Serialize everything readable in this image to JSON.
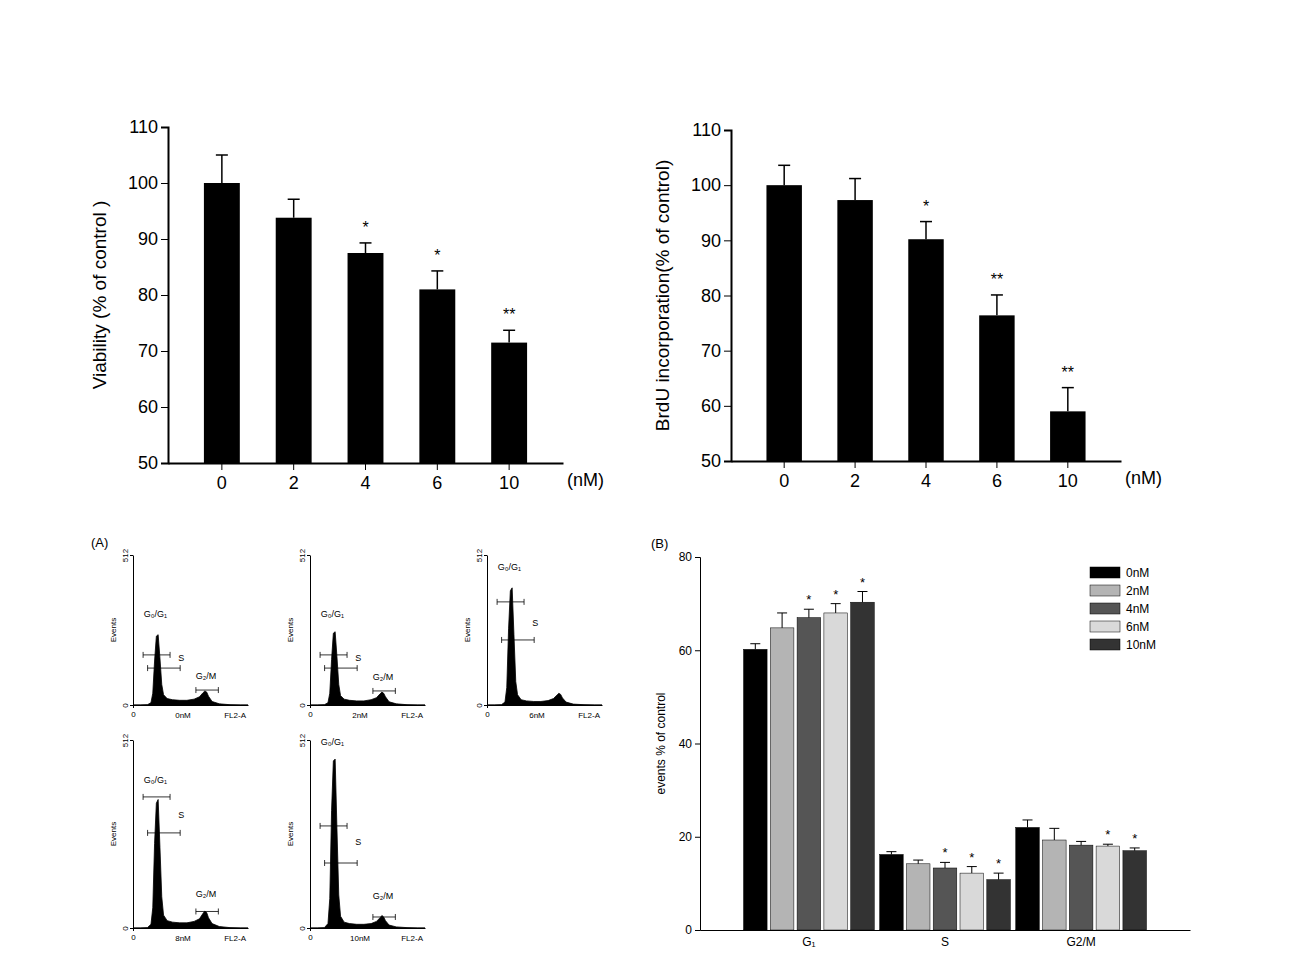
{
  "chart_data": [
    {
      "type": "bar",
      "categories": [
        "0",
        "2",
        "4",
        "6",
        "10"
      ],
      "values": [
        100,
        93.8,
        87.5,
        81,
        71.5
      ],
      "errors": [
        5,
        3.3,
        1.8,
        3.3,
        2.2
      ],
      "significance": [
        null,
        null,
        "*",
        "*",
        "**"
      ],
      "xlabel": "(nM)",
      "ylabel": "Viability (% of control )",
      "ylim": [
        50,
        110
      ],
      "yticks": [
        50,
        60,
        70,
        80,
        90,
        100,
        110
      ],
      "color": "#000000"
    },
    {
      "type": "bar",
      "categories": [
        "0",
        "2",
        "4",
        "6",
        "10"
      ],
      "values": [
        100,
        97.3,
        90.2,
        76.4,
        59
      ],
      "errors": [
        3.6,
        3.9,
        3.2,
        3.7,
        4.3
      ],
      "significance": [
        null,
        null,
        "*",
        "**",
        "**"
      ],
      "xlabel": "(nM)",
      "ylabel": "BrdU incorporation(% of control)",
      "ylim": [
        50,
        110
      ],
      "yticks": [
        50,
        60,
        70,
        80,
        90,
        100,
        110
      ],
      "color": "#000000"
    },
    {
      "type": "area",
      "panel_label": "(A)",
      "label": "0nM",
      "xlabel": "FL2-A",
      "ylabel": "Events",
      "x": [
        0,
        64,
        128,
        160,
        176,
        192,
        208,
        224,
        240,
        256,
        272,
        304,
        352,
        416,
        480,
        544,
        592,
        624,
        640,
        656,
        672,
        704,
        768,
        864,
        960,
        1024
      ],
      "values": [
        0,
        0,
        1,
        8,
        40,
        150,
        235,
        240,
        160,
        70,
        35,
        22,
        18,
        16,
        16,
        20,
        28,
        42,
        48,
        44,
        30,
        12,
        4,
        1,
        0,
        0
      ],
      "xlim": [
        0,
        1024
      ],
      "xticks": [
        0
      ],
      "ylim": [
        0,
        512
      ],
      "yticks": [
        0,
        512
      ],
      "color": "#000000",
      "annotations": [
        {
          "text": "G₀/G₁",
          "x": 200,
          "y": 300
        },
        {
          "text": "S",
          "x": 430,
          "y": 150
        },
        {
          "text": "G₂/M",
          "x": 650,
          "y": 90
        }
      ],
      "gates": [
        {
          "x": [
            90,
            330
          ],
          "y": 171
        },
        {
          "x": [
            130,
            420
          ],
          "y": 126
        },
        {
          "x": [
            560,
            760
          ],
          "y": 51
        }
      ]
    },
    {
      "type": "area",
      "label": "2nM",
      "xlabel": "FL2-A",
      "ylabel": "Events",
      "x": [
        0,
        64,
        128,
        160,
        176,
        192,
        208,
        224,
        240,
        256,
        272,
        304,
        352,
        416,
        480,
        544,
        592,
        624,
        640,
        656,
        672,
        704,
        768,
        864,
        960,
        1024
      ],
      "values": [
        0,
        0,
        1,
        8,
        40,
        155,
        245,
        250,
        165,
        70,
        32,
        20,
        16,
        14,
        14,
        18,
        25,
        38,
        44,
        40,
        28,
        11,
        4,
        1,
        0,
        0
      ],
      "xlim": [
        0,
        1024
      ],
      "xticks": [
        0
      ],
      "ylim": [
        0,
        512
      ],
      "yticks": [
        0,
        512
      ],
      "color": "#000000",
      "annotations": [
        {
          "text": "G₀/G₁",
          "x": 200,
          "y": 300
        },
        {
          "text": "S",
          "x": 430,
          "y": 150
        },
        {
          "text": "G₂/M",
          "x": 650,
          "y": 85
        }
      ],
      "gates": [
        {
          "x": [
            90,
            330
          ],
          "y": 171
        },
        {
          "x": [
            130,
            420
          ],
          "y": 126
        },
        {
          "x": [
            560,
            760
          ],
          "y": 48
        }
      ]
    },
    {
      "type": "area",
      "label": "6nM",
      "xlabel": "FL2-A",
      "ylabel": "Events",
      "x": [
        0,
        64,
        128,
        160,
        176,
        192,
        208,
        224,
        240,
        256,
        272,
        304,
        352,
        416,
        480,
        544,
        592,
        624,
        640,
        656,
        672,
        704,
        768,
        864,
        960,
        1024
      ],
      "values": [
        0,
        0,
        1,
        10,
        60,
        260,
        390,
        400,
        240,
        80,
        35,
        18,
        14,
        12,
        12,
        15,
        22,
        34,
        40,
        36,
        24,
        10,
        3,
        1,
        0,
        0
      ],
      "xlim": [
        0,
        1024
      ],
      "xticks": [
        0
      ],
      "ylim": [
        0,
        512
      ],
      "yticks": [
        0,
        512
      ],
      "color": "#000000",
      "annotations": [
        {
          "text": "G₀/G₁",
          "x": 200,
          "y": 461
        },
        {
          "text": "S",
          "x": 430,
          "y": 270
        }
      ],
      "gates": [
        {
          "x": [
            90,
            330
          ],
          "y": 352
        },
        {
          "x": [
            130,
            420
          ],
          "y": 222
        }
      ]
    },
    {
      "type": "area",
      "label": "8nM",
      "xlabel": "FL2-A",
      "ylabel": "Events",
      "x": [
        0,
        64,
        128,
        160,
        176,
        192,
        208,
        224,
        240,
        256,
        272,
        304,
        352,
        416,
        480,
        544,
        592,
        624,
        640,
        656,
        672,
        704,
        768,
        864,
        960,
        1024
      ],
      "values": [
        0,
        0,
        1,
        10,
        55,
        230,
        340,
        350,
        220,
        85,
        35,
        20,
        16,
        14,
        14,
        18,
        25,
        40,
        46,
        42,
        28,
        12,
        4,
        1,
        0,
        0
      ],
      "xlim": [
        0,
        1024
      ],
      "xticks": [
        0
      ],
      "ylim": [
        0,
        512
      ],
      "yticks": [
        0,
        512
      ],
      "color": "#000000",
      "annotations": [
        {
          "text": "G₀/G₁",
          "x": 200,
          "y": 395
        },
        {
          "text": "S",
          "x": 430,
          "y": 300
        },
        {
          "text": "G₂/M",
          "x": 650,
          "y": 85
        }
      ],
      "gates": [
        {
          "x": [
            90,
            330
          ],
          "y": 357
        },
        {
          "x": [
            130,
            420
          ],
          "y": 259
        },
        {
          "x": [
            560,
            760
          ],
          "y": 45
        }
      ]
    },
    {
      "type": "area",
      "label": "10nM",
      "xlabel": "FL2-A",
      "ylabel": "Events",
      "x": [
        0,
        64,
        128,
        160,
        176,
        192,
        208,
        224,
        240,
        256,
        272,
        304,
        352,
        416,
        480,
        544,
        592,
        624,
        640,
        656,
        672,
        704,
        768,
        864,
        960,
        1024
      ],
      "values": [
        0,
        0,
        1,
        12,
        80,
        320,
        455,
        460,
        270,
        90,
        32,
        16,
        12,
        10,
        10,
        12,
        18,
        28,
        34,
        30,
        20,
        8,
        3,
        1,
        0,
        0
      ],
      "xlim": [
        0,
        1024
      ],
      "xticks": [
        0
      ],
      "ylim": [
        0,
        512
      ],
      "yticks": [
        0,
        512
      ],
      "color": "#000000",
      "annotations": [
        {
          "text": "G₀/G₁",
          "x": 200,
          "y": 498
        },
        {
          "text": "S",
          "x": 430,
          "y": 226
        },
        {
          "text": "G₂/M",
          "x": 650,
          "y": 79
        }
      ],
      "gates": [
        {
          "x": [
            90,
            330
          ],
          "y": 278
        },
        {
          "x": [
            130,
            420
          ],
          "y": 177
        },
        {
          "x": [
            560,
            760
          ],
          "y": 30
        }
      ]
    },
    {
      "type": "bar",
      "panel_label": "(B)",
      "categories": [
        "G₁",
        "S",
        "G2/M"
      ],
      "ylabel": "events % of control",
      "ylim": [
        0,
        80
      ],
      "yticks": [
        0,
        20,
        40,
        60,
        80
      ],
      "legend": "upper right",
      "series": [
        {
          "name": "0nM",
          "color": "#000000",
          "values": [
            60.2,
            16.2,
            22
          ],
          "errors": [
            1.2,
            0.6,
            1.6
          ],
          "significance": [
            null,
            null,
            null
          ]
        },
        {
          "name": "2nM",
          "color": "#b4b4b4",
          "values": [
            64.8,
            14.2,
            19.3
          ],
          "errors": [
            3.2,
            0.8,
            2.5
          ],
          "significance": [
            null,
            null,
            null
          ]
        },
        {
          "name": "4nM",
          "color": "#555555",
          "values": [
            67,
            13.3,
            18.2
          ],
          "errors": [
            1.8,
            1.2,
            0.8
          ],
          "significance": [
            "*",
            "*",
            null
          ]
        },
        {
          "name": "6nM",
          "color": "#d9d9d9",
          "values": [
            68,
            12.2,
            18
          ],
          "errors": [
            2,
            1.4,
            0.4
          ],
          "significance": [
            "*",
            "*",
            "*"
          ]
        },
        {
          "name": "10nM",
          "color": "#333333",
          "values": [
            70.3,
            10.8,
            17
          ],
          "errors": [
            2.3,
            1.4,
            0.6
          ],
          "significance": [
            "*",
            "*",
            "*"
          ]
        }
      ]
    }
  ]
}
